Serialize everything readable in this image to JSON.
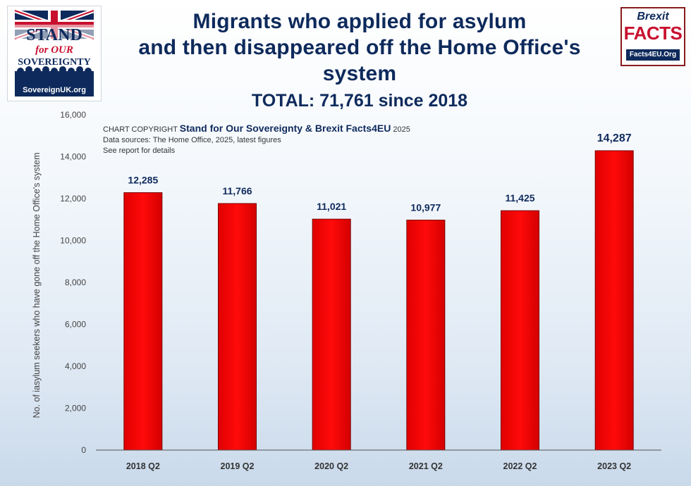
{
  "logo_left": {
    "line1": "STAND",
    "line2": "for OUR",
    "line3": "SOVEREIGNTY",
    "url": "SovereignUK.org"
  },
  "logo_right": {
    "line1": "Brexit",
    "line2": "FACTS",
    "url": "Facts4EU.Org"
  },
  "note": {
    "prefix": "CHART COPYRIGHT ",
    "owner": "Stand for Our Sovereignty & Brexit Facts4EU",
    "year": " 2025",
    "sources": "Data sources: The Home Office, 2025, latest figures",
    "details": "See report for details"
  },
  "colors": {
    "bar": "#ff0000",
    "title": "#0e2a5c"
  },
  "chart_data": {
    "type": "bar",
    "title_line1": "Migrants who applied for asylum",
    "title_line2": "and then disappeared off the Home Office's system",
    "subtitle": "TOTAL: 71,761 since 2018",
    "xlabel": "",
    "ylabel": "No. of iasylum seekers who have gone off the Home Office's system",
    "categories": [
      "2018 Q2",
      "2019 Q2",
      "2020 Q2",
      "2021 Q2",
      "2022 Q2",
      "2023 Q2"
    ],
    "values": [
      12285,
      11766,
      11021,
      10977,
      11425,
      14287
    ],
    "value_labels": [
      "12,285",
      "11,766",
      "11,021",
      "10,977",
      "11,425",
      "14,287"
    ],
    "ylim": [
      0,
      16000
    ],
    "yticks": [
      0,
      2000,
      4000,
      6000,
      8000,
      10000,
      12000,
      14000,
      16000
    ],
    "ytick_labels": [
      "0",
      "2,000",
      "4,000",
      "6,000",
      "8,000",
      "10,000",
      "12,000",
      "14,000",
      "16,000"
    ],
    "grid": false,
    "legend": "none"
  }
}
